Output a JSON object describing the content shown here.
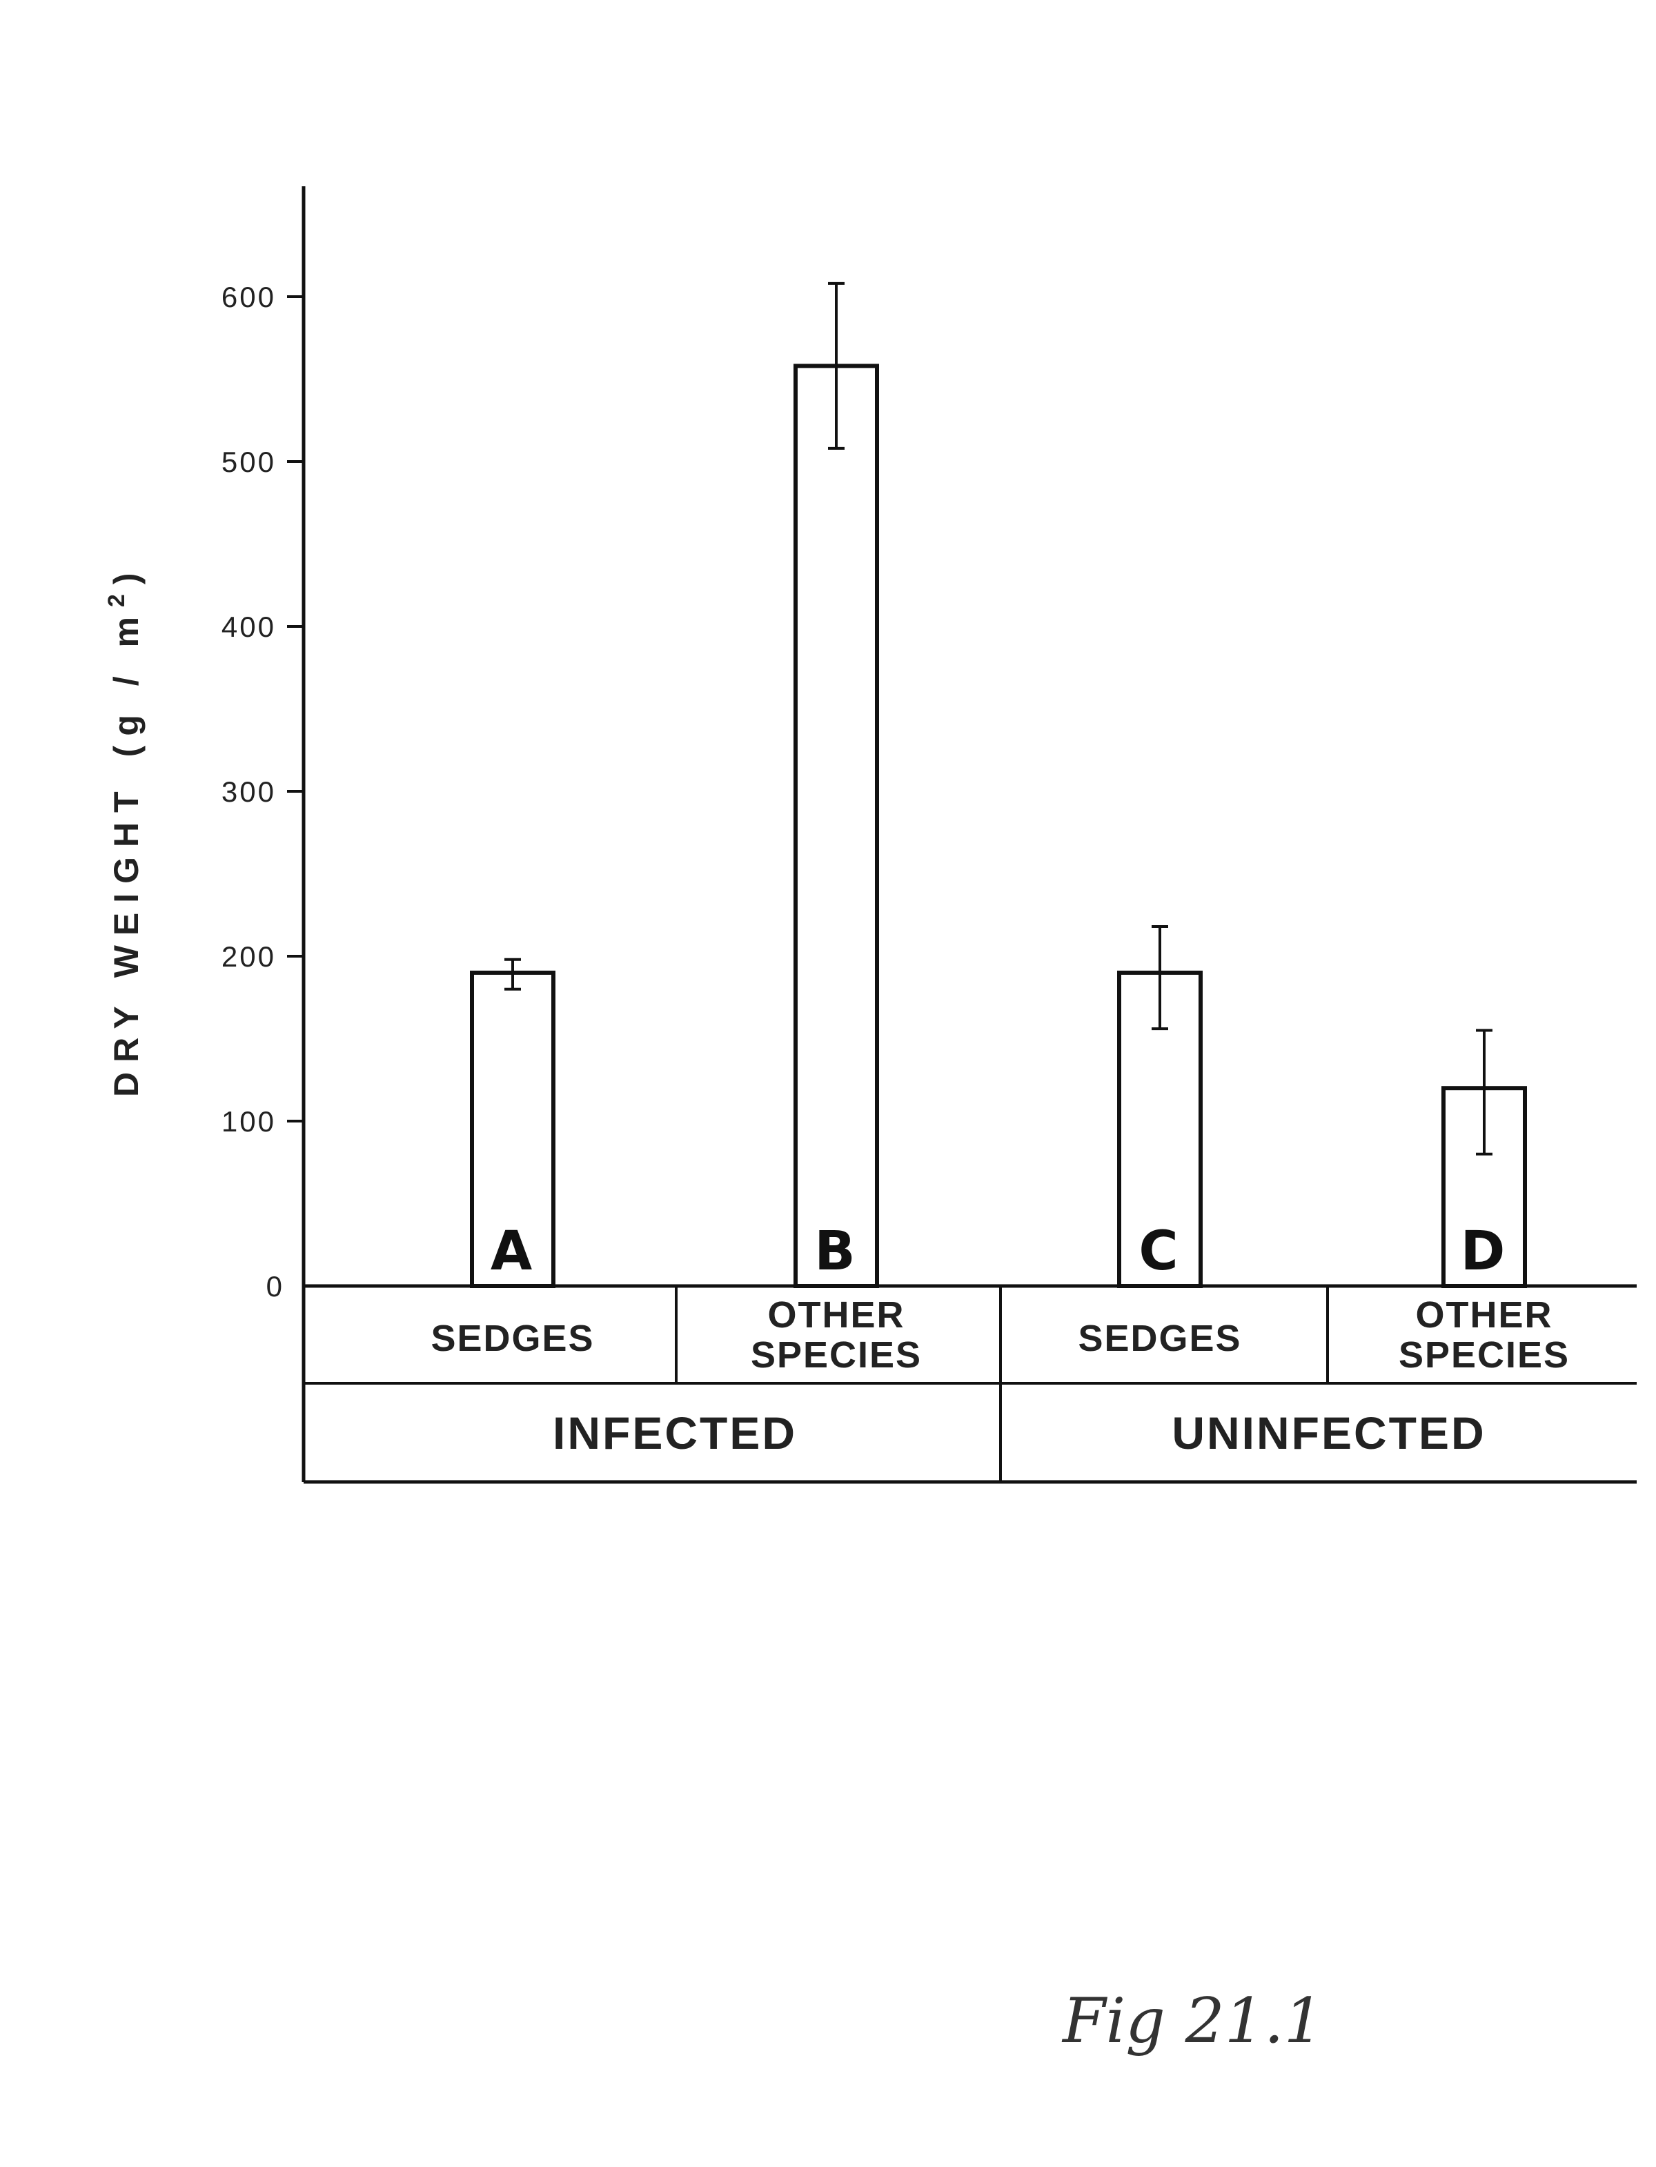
{
  "chart_data": {
    "type": "bar",
    "ylabel_main": "DRY WEIGHT",
    "ylabel_unit": "(g / m",
    "ylabel_sup": "2",
    "ylabel_close": ")",
    "ylim": [
      0,
      660
    ],
    "yticks": [
      "0",
      "100",
      "200",
      "300",
      "400",
      "500",
      "600"
    ],
    "grid": false,
    "bars": [
      {
        "letter": "A",
        "category": [
          "SEDGES"
        ],
        "group": "INFECTED",
        "value": 190,
        "err_low": 180,
        "err_high": 198
      },
      {
        "letter": "B",
        "category": [
          "OTHER",
          "SPECIES"
        ],
        "group": "INFECTED",
        "value": 558,
        "err_low": 508,
        "err_high": 608
      },
      {
        "letter": "C",
        "category": [
          "SEDGES"
        ],
        "group": "UNINFECTED",
        "value": 190,
        "err_low": 156,
        "err_high": 218
      },
      {
        "letter": "D",
        "category": [
          "OTHER",
          "SPECIES"
        ],
        "group": "UNINFECTED",
        "value": 120,
        "err_low": 80,
        "err_high": 155
      }
    ],
    "groups": [
      "INFECTED",
      "UNINFECTED"
    ]
  },
  "caption": "Fig 21.1"
}
